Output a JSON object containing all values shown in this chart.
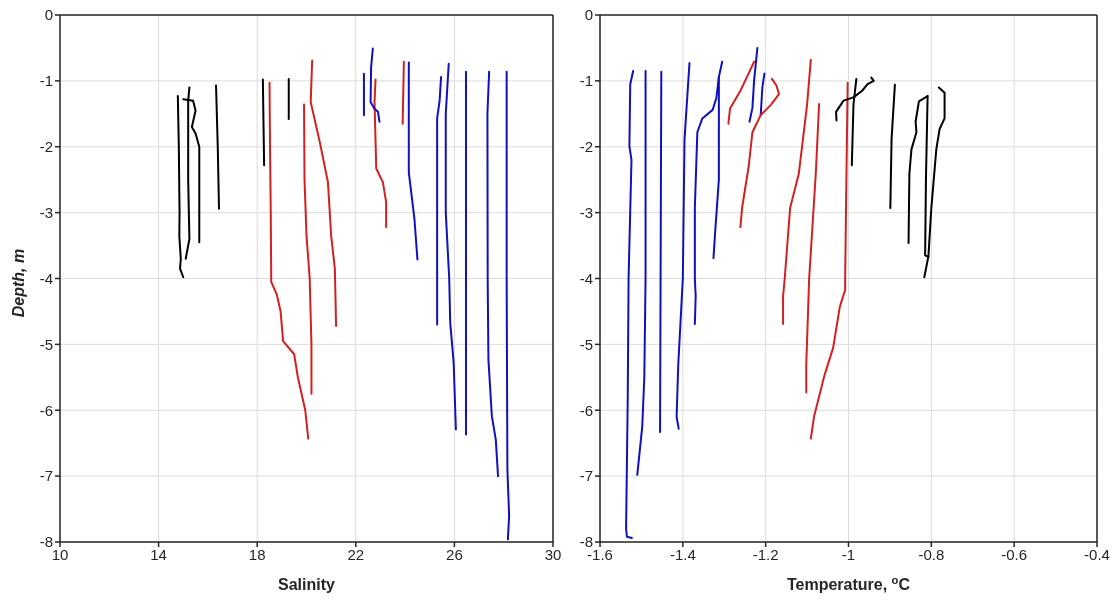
{
  "chart_data": [
    {
      "type": "line",
      "xlabel": "Salinity",
      "ylabel": "Depth, m",
      "xlim": [
        10,
        30
      ],
      "xticks": [
        10,
        14,
        18,
        22,
        26,
        30
      ],
      "ylim": [
        -8,
        0
      ],
      "yticks": [
        -8,
        -7,
        -6,
        -5,
        -4,
        -3,
        -2,
        -1,
        0
      ],
      "grid": true,
      "series": [
        {
          "color": "#000000",
          "x": [
            14.78,
            14.82,
            14.85,
            14.84,
            14.9,
            14.87,
            15.0
          ],
          "values": [
            -1.23,
            -2,
            -3,
            -3.35,
            -3.7,
            -3.85,
            -3.98
          ]
        },
        {
          "color": "#000000",
          "x": [
            15.25,
            15.2,
            15.2,
            15.25,
            15.1
          ],
          "values": [
            -1.1,
            -1.3,
            -2.5,
            -3.4,
            -3.7
          ]
        },
        {
          "color": "#000000",
          "x": [
            15.0,
            15.4,
            15.5,
            15.35,
            15.5,
            15.65,
            15.65
          ],
          "values": [
            -1.28,
            -1.3,
            -1.45,
            -1.7,
            -1.8,
            -2,
            -3.45
          ]
        },
        {
          "color": "#000000",
          "x": [
            16.33,
            16.4,
            16.45
          ],
          "values": [
            -1.07,
            -2,
            -2.94
          ]
        },
        {
          "color": "#000000",
          "x": [
            18.23,
            18.28
          ],
          "values": [
            -0.98,
            -2.28
          ]
        },
        {
          "color": "#000000",
          "x": [
            19.28,
            19.28
          ],
          "values": [
            -0.97,
            -1.58
          ]
        },
        {
          "color": "#d42020",
          "x": [
            18.5,
            18.52,
            18.55,
            18.57,
            18.8,
            18.95,
            19.05,
            19.5,
            19.65,
            19.95,
            20.07
          ],
          "values": [
            -1.03,
            -2,
            -3,
            -4.05,
            -4.25,
            -4.5,
            -4.95,
            -5.15,
            -5.5,
            -6,
            -6.43
          ]
        },
        {
          "color": "#d42020",
          "x": [
            19.9,
            19.92,
            20.0,
            20.13,
            20.2,
            20.2
          ],
          "values": [
            -1.36,
            -2.5,
            -3.35,
            -4,
            -5,
            -5.75
          ]
        },
        {
          "color": "#d42020",
          "x": [
            20.23,
            20.17,
            20.54,
            20.87,
            21.0,
            21.15,
            21.2
          ],
          "values": [
            -0.69,
            -1.32,
            -1.93,
            -2.54,
            -3.35,
            -3.85,
            -4.72
          ]
        },
        {
          "color": "#d42020",
          "x": [
            22.8,
            22.76,
            22.83,
            23.1,
            23.23,
            23.23
          ],
          "values": [
            -0.98,
            -1.32,
            -2.33,
            -2.54,
            -2.84,
            -3.22
          ]
        },
        {
          "color": "#d42020",
          "x": [
            23.95,
            23.9
          ],
          "values": [
            -0.71,
            -1.65
          ]
        },
        {
          "color": "#1010c0",
          "x": [
            22.33,
            22.33
          ],
          "values": [
            -0.89,
            -1.52
          ]
        },
        {
          "color": "#1010c0",
          "x": [
            22.69,
            22.62,
            22.6,
            22.75,
            22.9,
            22.96
          ],
          "values": [
            -0.51,
            -0.8,
            -1.32,
            -1.42,
            -1.47,
            -1.62
          ]
        },
        {
          "color": "#1010c0",
          "x": [
            24.15,
            24.15,
            24.38,
            24.5
          ],
          "values": [
            -0.72,
            -2.39,
            -3.1,
            -3.71
          ]
        },
        {
          "color": "#1010c0",
          "x": [
            25.46,
            25.4,
            25.3,
            25.3
          ],
          "values": [
            -0.94,
            -1.3,
            -1.57,
            -4.7
          ]
        },
        {
          "color": "#1010c0",
          "x": [
            25.77,
            25.65,
            25.65,
            25.79,
            25.83,
            25.97,
            26.06
          ],
          "values": [
            -0.74,
            -1.5,
            -3,
            -4,
            -4.67,
            -5.28,
            -6.29
          ]
        },
        {
          "color": "#1010c0",
          "x": [
            26.47,
            26.47
          ],
          "values": [
            -0.86,
            -6.37
          ]
        },
        {
          "color": "#1010c0",
          "x": [
            27.41,
            27.34,
            27.35,
            27.38,
            27.52,
            27.68,
            27.77
          ],
          "values": [
            -0.86,
            -1.5,
            -4,
            -5.23,
            -6.09,
            -6.45,
            -7.0
          ]
        },
        {
          "color": "#1010c0",
          "x": [
            28.12,
            28.12,
            28.15,
            28.22,
            28.17
          ],
          "values": [
            -0.86,
            -4,
            -6.9,
            -7.6,
            -7.96
          ]
        }
      ]
    },
    {
      "type": "line",
      "xlabel": "Temperature, $^{o}$C",
      "xlim": [
        -1.6,
        -0.4
      ],
      "xticks": [
        -1.6,
        -1.4,
        -1.2,
        -1,
        -0.8,
        -0.6,
        -0.4
      ],
      "ylim": [
        -8,
        0
      ],
      "yticks": [
        -8,
        -7,
        -6,
        -5,
        -4,
        -3,
        -2,
        -1,
        0
      ],
      "grid": true,
      "series": [
        {
          "color": "#1010c0",
          "x": [
            -1.52,
            -1.527,
            -1.529,
            -1.524,
            -1.531,
            -1.533,
            -1.537,
            -1.535,
            -1.523
          ],
          "values": [
            -0.85,
            -1.05,
            -1.99,
            -2.2,
            -4,
            -5.8,
            -7.8,
            -7.92,
            -7.94
          ]
        },
        {
          "color": "#1010c0",
          "x": [
            -1.49,
            -1.49,
            -1.493,
            -1.498,
            -1.51
          ],
          "values": [
            -0.85,
            -4,
            -5.5,
            -6.25,
            -6.98
          ]
        },
        {
          "color": "#1010c0",
          "x": [
            -1.452,
            -1.455
          ],
          "values": [
            -0.86,
            -6.33
          ]
        },
        {
          "color": "#1010c0",
          "x": [
            -1.384,
            -1.396,
            -1.4,
            -1.411,
            -1.415,
            -1.41
          ],
          "values": [
            -0.73,
            -1.9,
            -4,
            -5.3,
            -6.1,
            -6.28
          ]
        },
        {
          "color": "#1010c0",
          "x": [
            -1.305,
            -1.313,
            -1.319,
            -1.328,
            -1.353,
            -1.365,
            -1.371,
            -1.371,
            -1.369,
            -1.371
          ],
          "values": [
            -0.71,
            -0.94,
            -1.26,
            -1.44,
            -1.57,
            -1.78,
            -2.93,
            -4,
            -4.27,
            -4.69
          ]
        },
        {
          "color": "#1010c0",
          "x": [
            -1.313,
            -1.313,
            -1.322,
            -1.326
          ],
          "values": [
            -0.94,
            -2.5,
            -3.3,
            -3.69
          ]
        },
        {
          "color": "#1010c0",
          "x": [
            -1.22,
            -1.228,
            -1.232,
            -1.239
          ],
          "values": [
            -0.5,
            -1.0,
            -1.41,
            -1.62
          ]
        },
        {
          "color": "#1010c0",
          "x": [
            -1.203,
            -1.208,
            -1.212
          ],
          "values": [
            -0.89,
            -1.1,
            -1.52
          ]
        },
        {
          "color": "#d42020",
          "x": [
            -1.29,
            -1.286,
            -1.261,
            -1.245,
            -1.228
          ],
          "values": [
            -1.65,
            -1.42,
            -1.15,
            -0.94,
            -0.71
          ]
        },
        {
          "color": "#d42020",
          "x": [
            -1.185,
            -1.174,
            -1.168,
            -1.187,
            -1.212,
            -1.232,
            -1.241,
            -1.257,
            -1.261
          ],
          "values": [
            -0.97,
            -1.07,
            -1.2,
            -1.36,
            -1.52,
            -1.78,
            -2.3,
            -2.93,
            -3.22
          ]
        },
        {
          "color": "#d42020",
          "x": [
            -1.091,
            -1.1,
            -1.12,
            -1.141,
            -1.154,
            -1.158,
            -1.158
          ],
          "values": [
            -0.68,
            -1.36,
            -2.41,
            -2.93,
            -4,
            -4.27,
            -4.69
          ]
        },
        {
          "color": "#d42020",
          "x": [
            -1.071,
            -1.079,
            -1.095,
            -1.102,
            -1.102
          ],
          "values": [
            -1.35,
            -2.41,
            -4,
            -5.31,
            -5.73
          ]
        },
        {
          "color": "#d42020",
          "x": [
            -1.002,
            -1.006,
            -1.008,
            -1.008,
            -1.021,
            -1.037,
            -1.058,
            -1.083,
            -1.091
          ],
          "values": [
            -1.03,
            -2.93,
            -4,
            -4.17,
            -4.43,
            -5.05,
            -5.47,
            -6.09,
            -6.43
          ]
        },
        {
          "color": "#000000",
          "x": [
            -1.029,
            -1.03,
            -1.012,
            -0.988,
            -0.967,
            -0.954,
            -0.939,
            -0.945
          ],
          "values": [
            -1.6,
            -1.47,
            -1.3,
            -1.25,
            -1.15,
            -1.05,
            -1.0,
            -0.95
          ]
        },
        {
          "color": "#000000",
          "x": [
            -0.981,
            -0.988,
            -0.992
          ],
          "values": [
            -0.97,
            -1.36,
            -2.28
          ]
        },
        {
          "color": "#000000",
          "x": [
            -0.888,
            -0.896,
            -0.899
          ],
          "values": [
            -1.06,
            -1.88,
            -2.93
          ]
        },
        {
          "color": "#000000",
          "x": [
            -0.809,
            -0.83,
            -0.838,
            -0.836,
            -0.848,
            -0.853,
            -0.855
          ],
          "values": [
            -1.23,
            -1.31,
            -1.62,
            -1.78,
            -2.04,
            -2.41,
            -3.46
          ]
        },
        {
          "color": "#000000",
          "x": [
            -0.809,
            -0.813,
            -0.815,
            -0.807
          ],
          "values": [
            -1.23,
            -2.5,
            -3.65,
            -3.67
          ]
        },
        {
          "color": "#000000",
          "x": [
            -0.782,
            -0.768,
            -0.768,
            -0.78,
            -0.788,
            -0.8,
            -0.807,
            -0.817
          ],
          "values": [
            -1.1,
            -1.18,
            -1.57,
            -1.73,
            -2.04,
            -2.93,
            -3.66,
            -3.98
          ]
        }
      ]
    }
  ]
}
